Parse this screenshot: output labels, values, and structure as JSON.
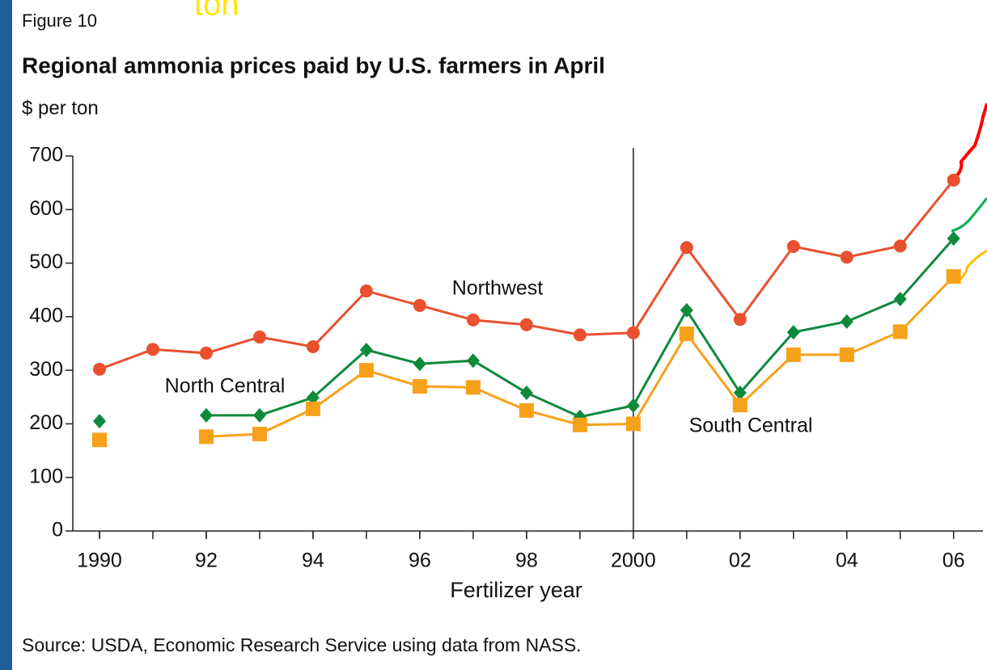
{
  "chart_data": {
    "type": "line",
    "figure_label": "Figure 10",
    "title": "Regional ammonia prices paid by U.S. farmers in April",
    "y_label": "$ per ton",
    "x_label": "Fertilizer year",
    "source": "Source:  USDA, Economic Research Service using data from NASS.",
    "overlay_text": "ton",
    "x": [
      1990,
      1991,
      1992,
      1993,
      1994,
      1995,
      1996,
      1997,
      1998,
      1999,
      2000,
      2001,
      2002,
      2003,
      2004,
      2005,
      2006
    ],
    "series": [
      {
        "name": "Northwest",
        "color": "#e8502f",
        "marker": "circle",
        "values": [
          302,
          339,
          332,
          362,
          344,
          448,
          421,
          394,
          385,
          366,
          370,
          529,
          395,
          531,
          511,
          532,
          655
        ]
      },
      {
        "name": "North Central",
        "color": "#0e8a3c",
        "marker": "diamond",
        "values": [
          205,
          null,
          216,
          216,
          249,
          338,
          312,
          318,
          258,
          213,
          234,
          412,
          258,
          371,
          391,
          433,
          546
        ]
      },
      {
        "name": "South Central",
        "color": "#f7a11a",
        "marker": "square",
        "values": [
          170,
          null,
          176,
          181,
          228,
          300,
          270,
          268,
          225,
          198,
          200,
          368,
          235,
          329,
          329,
          372,
          475
        ]
      }
    ],
    "xlim": [
      1989.5,
      2006.55
    ],
    "xticks": [
      {
        "value": 1990,
        "label": "1990"
      },
      {
        "value": 1992,
        "label": "92"
      },
      {
        "value": 1994,
        "label": "94"
      },
      {
        "value": 1996,
        "label": "96"
      },
      {
        "value": 1998,
        "label": "98"
      },
      {
        "value": 2000,
        "label": "2000"
      },
      {
        "value": 2002,
        "label": "02"
      },
      {
        "value": 2004,
        "label": "04"
      },
      {
        "value": 2006,
        "label": "06"
      }
    ],
    "ylim": [
      0,
      700
    ],
    "yticks": [
      0,
      100,
      200,
      300,
      400,
      500,
      600,
      700
    ],
    "vline": 2000,
    "grid": false
  }
}
